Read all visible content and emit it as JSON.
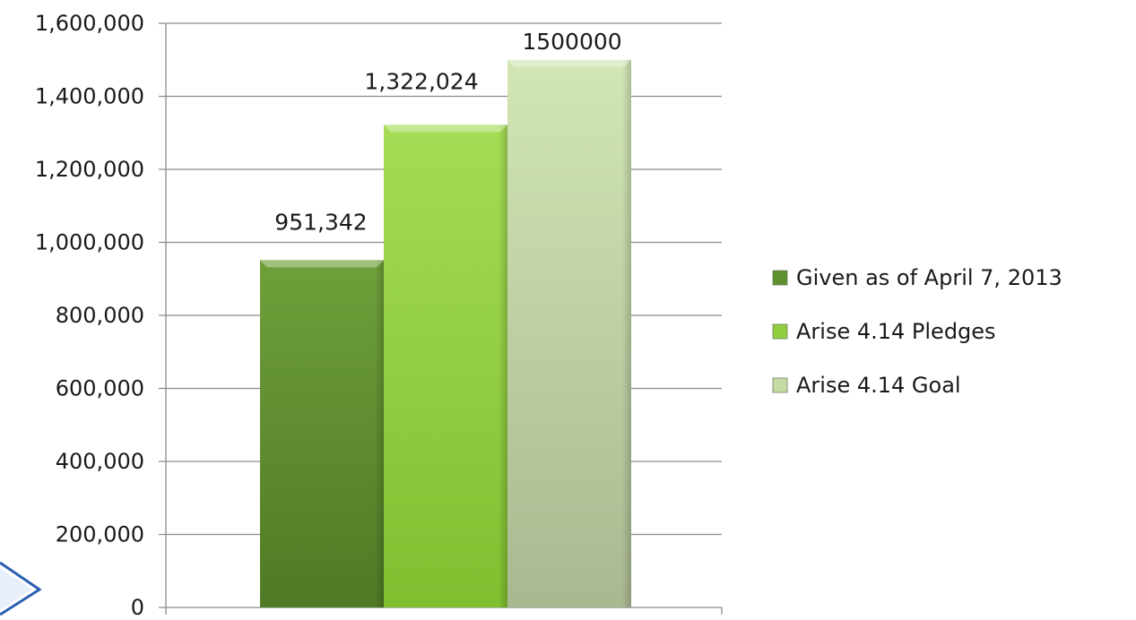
{
  "chart_data": {
    "type": "bar",
    "categories": [
      ""
    ],
    "series": [
      {
        "name": "Given as of April 7, 2013",
        "values": [
          951342
        ],
        "data_label": "951,342",
        "color": "#5f8f2f"
      },
      {
        "name": "Arise 4.14 Pledges",
        "values": [
          1322024
        ],
        "data_label": "1,322,024",
        "color": "#8fcf3f"
      },
      {
        "name": "Arise 4.14 Goal",
        "values": [
          1500000
        ],
        "data_label": "1500000",
        "color": "#c6dca6"
      }
    ],
    "y_ticks": [
      0,
      200000,
      400000,
      600000,
      800000,
      1000000,
      1200000,
      1400000,
      1600000
    ],
    "y_tick_labels": [
      "0",
      "200,000",
      "400,000",
      "600,000",
      "800,000",
      "1,000,000",
      "1,200,000",
      "1,400,000",
      "1,600,000"
    ],
    "ylim": [
      0,
      1600000
    ],
    "title": "",
    "xlabel": "",
    "ylabel": "",
    "grid": true,
    "legend_position": "right"
  },
  "decoration": {
    "corner_arrow_color": "#2a5fb0"
  }
}
